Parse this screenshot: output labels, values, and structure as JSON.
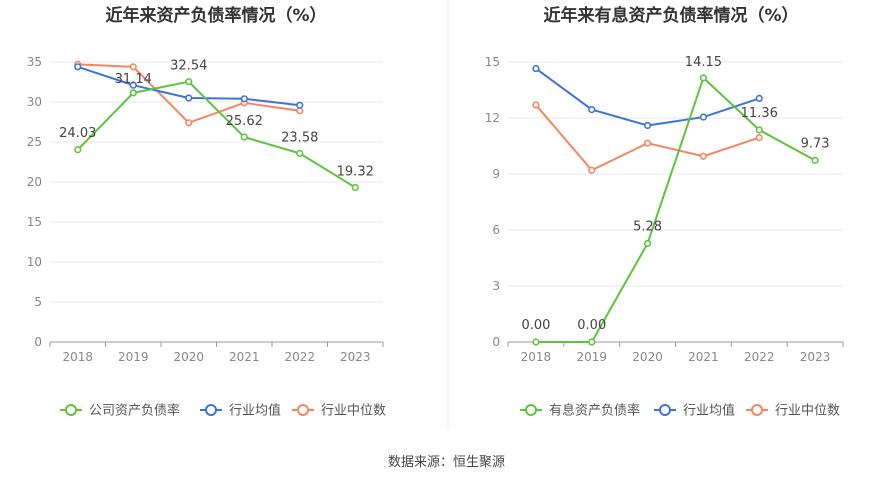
{
  "source": "数据来源：恒生聚源",
  "colors": {
    "company": "#5cc43a",
    "avg": "#3b73de",
    "median": "#f4865f",
    "grid": "#e6e9f0",
    "axis": "#999999",
    "tick_text": "#888888",
    "label_text": "#444444",
    "title_text": "#333333",
    "legend_text": "#555555"
  },
  "chart_data": [
    {
      "type": "line",
      "title": "近年来资产负债率情况（%）",
      "categories": [
        "2018",
        "2019",
        "2020",
        "2021",
        "2022",
        "2023"
      ],
      "ylim": [
        0,
        35
      ],
      "yticks": [
        "0",
        "5",
        "10",
        "15",
        "20",
        "25",
        "30",
        "35"
      ],
      "grid": true,
      "legend_position": "bottom",
      "series": [
        {
          "name": "公司资产负债率",
          "color_key": "company",
          "values": [
            24.03,
            31.14,
            32.54,
            25.62,
            23.58,
            19.32
          ],
          "labels": [
            "24.03",
            "31.14",
            "32.54",
            "25.62",
            "23.58",
            "19.32"
          ]
        },
        {
          "name": "行业均值",
          "color_key": "avg",
          "values": [
            34.4,
            32.1,
            30.5,
            30.4,
            29.6,
            null
          ]
        },
        {
          "name": "行业中位数",
          "color_key": "median",
          "values": [
            34.7,
            34.4,
            27.4,
            29.9,
            28.9,
            null
          ]
        }
      ]
    },
    {
      "type": "line",
      "title": "近年来有息资产负债率情况（%）",
      "categories": [
        "2018",
        "2019",
        "2020",
        "2021",
        "2022",
        "2023"
      ],
      "ylim": [
        0,
        15
      ],
      "yticks": [
        "0",
        "3",
        "6",
        "9",
        "12",
        "15"
      ],
      "grid": true,
      "legend_position": "bottom",
      "series": [
        {
          "name": "有息资产负债率",
          "color_key": "company",
          "values": [
            0.0,
            0.0,
            5.28,
            14.15,
            11.36,
            9.73
          ],
          "labels": [
            "0.00",
            "0.00",
            "5.28",
            "14.15",
            "11.36",
            "9.73"
          ]
        },
        {
          "name": "行业均值",
          "color_key": "avg",
          "values": [
            14.65,
            12.45,
            11.6,
            12.05,
            13.05,
            null
          ]
        },
        {
          "name": "行业中位数",
          "color_key": "median",
          "values": [
            12.7,
            9.2,
            10.65,
            9.95,
            10.95,
            null
          ]
        }
      ]
    }
  ]
}
